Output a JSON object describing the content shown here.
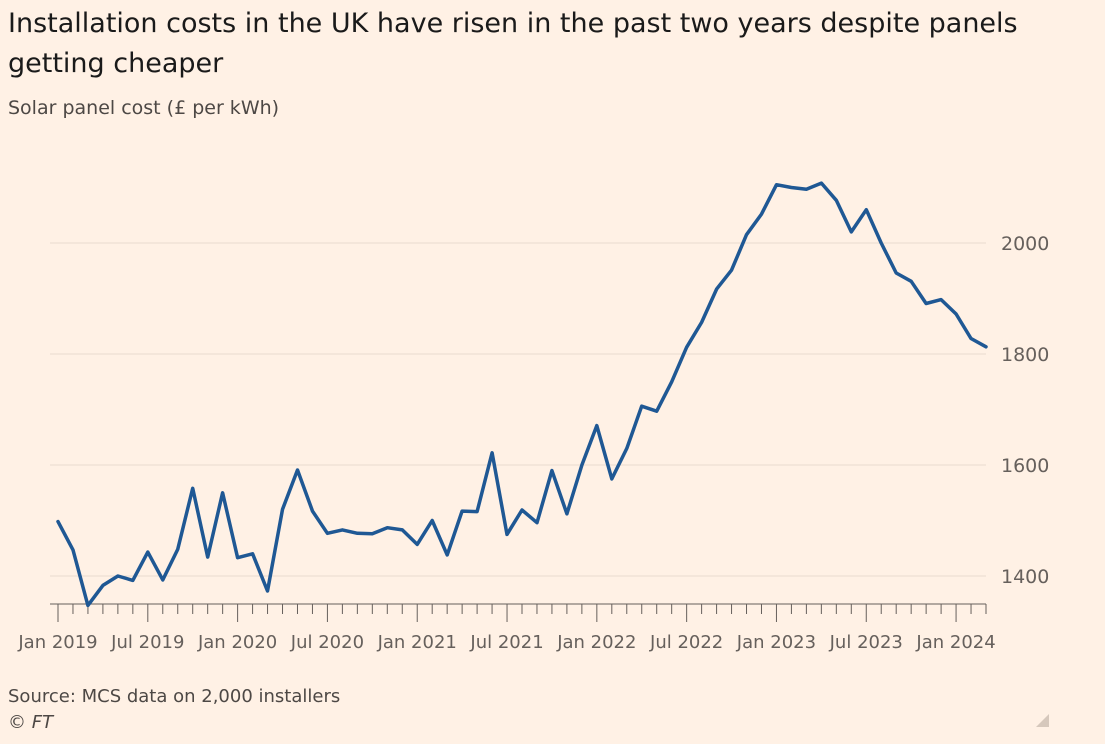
{
  "header": {
    "title": "Installation costs in the UK have risen in the past two years despite panels getting cheaper",
    "subtitle": "Solar panel cost (£ per kWh)"
  },
  "footer": {
    "source": "Source: MCS data on 2,000 installers",
    "credit": "© FT"
  },
  "icons": {
    "corner": "resize-corner-icon"
  },
  "colors": {
    "background": "#FFF1E5",
    "line": "#1F5894",
    "grid": "#E9DCD0",
    "axis": "#66605C"
  },
  "chart_data": {
    "type": "line",
    "title": "Installation costs in the UK have risen in the past two years despite panels getting cheaper",
    "subtitle": "Solar panel cost (£ per kWh)",
    "xlabel": "",
    "ylabel": "",
    "ylim": [
      1340,
      2130
    ],
    "yticks": [
      1400,
      1600,
      1800,
      2000
    ],
    "x_tick_labels": [
      "Jan 2019",
      "Jul 2019",
      "Jan 2020",
      "Jul 2020",
      "Jan 2021",
      "Jul 2021",
      "Jan 2022",
      "Jul 2022",
      "Jan 2023",
      "Jul 2023",
      "Jan 2024"
    ],
    "x": [
      "2019-01",
      "2019-02",
      "2019-03",
      "2019-04",
      "2019-05",
      "2019-06",
      "2019-07",
      "2019-08",
      "2019-09",
      "2019-10",
      "2019-11",
      "2019-12",
      "2020-01",
      "2020-02",
      "2020-03",
      "2020-04",
      "2020-05",
      "2020-06",
      "2020-07",
      "2020-08",
      "2020-09",
      "2020-10",
      "2020-11",
      "2020-12",
      "2021-01",
      "2021-02",
      "2021-03",
      "2021-04",
      "2021-05",
      "2021-06",
      "2021-07",
      "2021-08",
      "2021-09",
      "2021-10",
      "2021-11",
      "2021-12",
      "2022-01",
      "2022-02",
      "2022-03",
      "2022-04",
      "2022-05",
      "2022-06",
      "2022-07",
      "2022-08",
      "2022-09",
      "2022-10",
      "2022-11",
      "2022-12",
      "2023-01",
      "2023-02",
      "2023-03",
      "2023-04",
      "2023-05",
      "2023-06",
      "2023-07",
      "2023-08",
      "2023-09",
      "2023-10",
      "2023-11",
      "2023-12",
      "2024-01",
      "2024-02",
      "2024-03"
    ],
    "series": [
      {
        "name": "",
        "values": [
          1498,
          1447,
          1347,
          1383,
          1400,
          1392,
          1443,
          1393,
          1448,
          1558,
          1434,
          1550,
          1433,
          1440,
          1373,
          1520,
          1591,
          1517,
          1477,
          1483,
          1477,
          1476,
          1487,
          1483,
          1457,
          1500,
          1438,
          1517,
          1516,
          1622,
          1475,
          1519,
          1496,
          1590,
          1512,
          1600,
          1671,
          1575,
          1630,
          1706,
          1697,
          1750,
          1812,
          1857,
          1917,
          1951,
          2015,
          2052,
          2105,
          2100,
          2097,
          2108,
          2077,
          2020,
          2060,
          2000,
          1946,
          1931,
          1891,
          1898,
          1872,
          1828,
          1813
        ]
      }
    ],
    "grid": true,
    "legend": "none"
  }
}
